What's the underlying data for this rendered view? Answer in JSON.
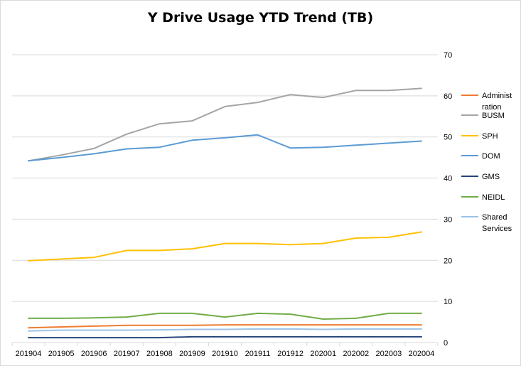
{
  "chart_data": {
    "type": "line",
    "title": "Y Drive Usage YTD Trend (TB)",
    "xlabel": "",
    "ylabel": "",
    "categories": [
      "201904",
      "201905",
      "201906",
      "201907",
      "201908",
      "201909",
      "201910",
      "201911",
      "201912",
      "202001",
      "202002",
      "202003",
      "202004"
    ],
    "ylim": [
      0,
      70
    ],
    "yticks": [
      0,
      10,
      20,
      30,
      40,
      50,
      60,
      70
    ],
    "y_axis_side": "right",
    "grid": true,
    "legend_position": "right",
    "series": [
      {
        "name": "Administration",
        "name_lines": [
          "Administ",
          "ration"
        ],
        "color": "#ed7d31",
        "values": [
          3.6,
          3.8,
          4.0,
          4.2,
          4.2,
          4.2,
          4.3,
          4.3,
          4.3,
          4.3,
          4.3,
          4.3,
          4.3
        ]
      },
      {
        "name": "BUSM",
        "name_lines": [
          "BUSM"
        ],
        "color": "#a5a5a5",
        "values": [
          44.2,
          45.6,
          47.2,
          50.7,
          53.2,
          53.9,
          57.4,
          58.4,
          60.3,
          59.6,
          61.3,
          61.3,
          61.8
        ]
      },
      {
        "name": "SPH",
        "name_lines": [
          "SPH"
        ],
        "color": "#ffc000",
        "values": [
          19.9,
          20.3,
          20.7,
          22.4,
          22.4,
          22.8,
          24.1,
          24.1,
          23.8,
          24.1,
          25.4,
          25.6,
          26.9
        ]
      },
      {
        "name": "DOM",
        "name_lines": [
          "DOM"
        ],
        "color": "#5b9bd5",
        "values": [
          44.2,
          45.0,
          45.9,
          47.1,
          47.5,
          49.2,
          49.8,
          50.5,
          47.3,
          47.5,
          48.0,
          48.5,
          49.0
        ]
      },
      {
        "name": "GMS",
        "name_lines": [
          "GMS"
        ],
        "color": "#264478",
        "values": [
          1.2,
          1.2,
          1.2,
          1.2,
          1.2,
          1.4,
          1.4,
          1.4,
          1.4,
          1.4,
          1.4,
          1.4,
          1.4
        ]
      },
      {
        "name": "NEIDL",
        "name_lines": [
          "NEIDL"
        ],
        "color": "#70ad47",
        "values": [
          5.9,
          5.9,
          6.0,
          6.2,
          7.1,
          7.1,
          6.2,
          7.1,
          6.9,
          5.7,
          5.9,
          7.1,
          7.1
        ]
      },
      {
        "name": "Shared Services",
        "name_lines": [
          "Shared",
          "Services"
        ],
        "color": "#9dc3e6",
        "values": [
          2.8,
          3.0,
          3.0,
          3.0,
          3.1,
          3.2,
          3.2,
          3.3,
          3.3,
          3.2,
          3.3,
          3.3,
          3.3
        ]
      }
    ]
  }
}
